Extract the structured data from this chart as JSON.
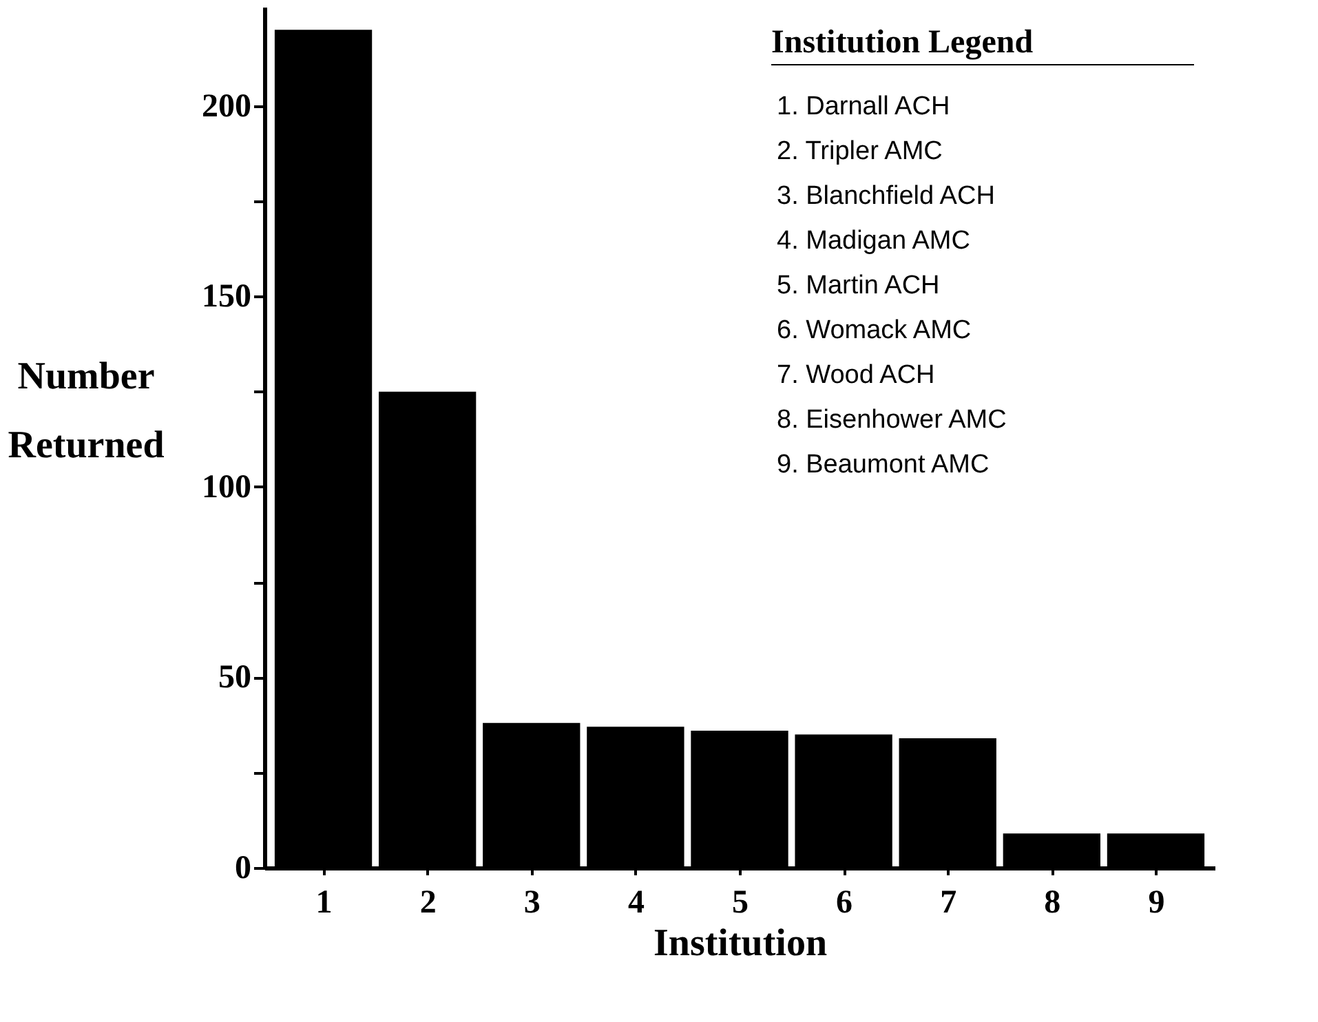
{
  "chart_data": {
    "type": "bar",
    "xlabel": "Institution",
    "ylabel": "Number Returned",
    "categories": [
      "1",
      "2",
      "3",
      "4",
      "5",
      "6",
      "7",
      "8",
      "9"
    ],
    "values": [
      220,
      125,
      38,
      37,
      36,
      35,
      34,
      9,
      9
    ],
    "color": "#000000",
    "ylim": [
      0,
      226
    ],
    "yticks": [
      0,
      {
        "value": 25,
        "label": null
      },
      50,
      {
        "value": 75,
        "label": null
      },
      100,
      {
        "value": 125,
        "label": null
      },
      150,
      {
        "value": 175,
        "label": null
      },
      200
    ],
    "grid": false,
    "annotations": [
      "Institution Legend",
      "1.  Darnall ACH",
      " 2. Tripler AMC",
      "3.  Blanchfield ACH",
      "4.  Madigan AMC",
      "5.  Martin ACH",
      "6.  Womack AMC",
      "7.  Wood ACH",
      "8.  Eisenhower AMC",
      "9.  Beaumont AMC"
    ]
  }
}
